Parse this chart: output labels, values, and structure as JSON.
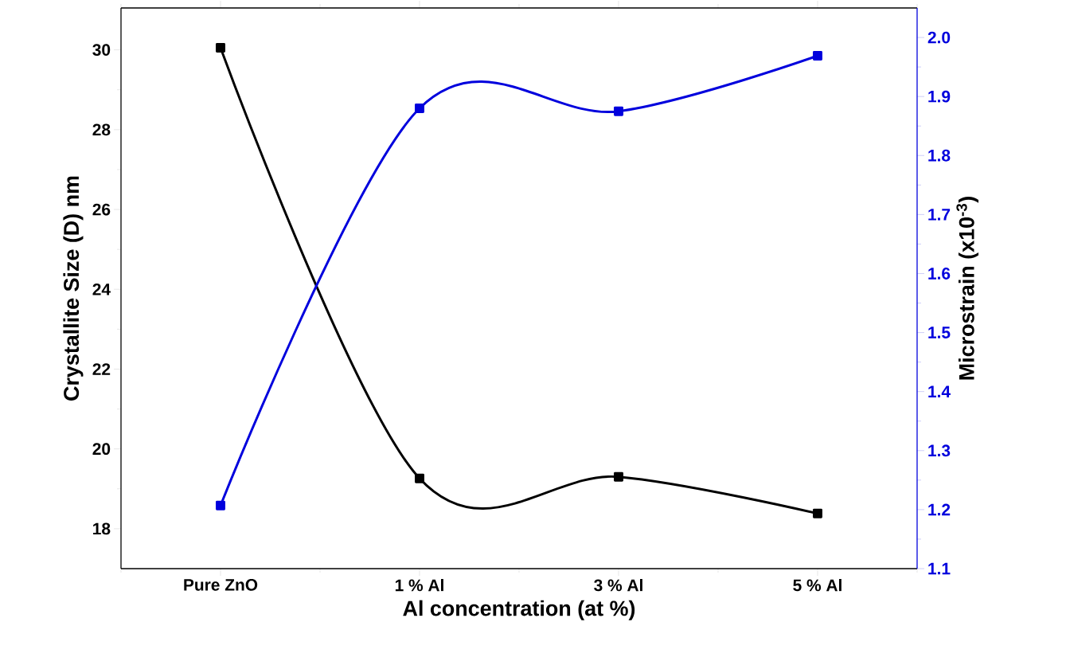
{
  "chart_data": {
    "type": "line",
    "categories": [
      "Pure ZnO",
      "1 % Al",
      "3 % Al",
      "5 % Al"
    ],
    "xlabel": "Al concentration (at %)",
    "ylabel": "Crystallite Size (D) nm",
    "y2label": "Microstrain (x10$^{-3}$)",
    "series": [
      {
        "color": "#000000",
        "values": [
          30.05,
          19.26,
          19.3,
          18.38
        ]
      },
      {
        "color": "#0000dd",
        "axis": "y2",
        "values": [
          1.207,
          1.88,
          1.875,
          1.969
        ]
      }
    ],
    "ylim": [
      17,
      31.05
    ],
    "yticks": [
      18,
      20,
      22,
      24,
      26,
      28,
      30
    ],
    "y2lim": [
      1.1,
      2.05
    ],
    "y2ticks": [
      1.1,
      1.2,
      1.3,
      1.4,
      1.5,
      1.6,
      1.7,
      1.8,
      1.9,
      {
        "value": 2.0,
        "label": "2.0"
      }
    ],
    "marker": "square"
  }
}
